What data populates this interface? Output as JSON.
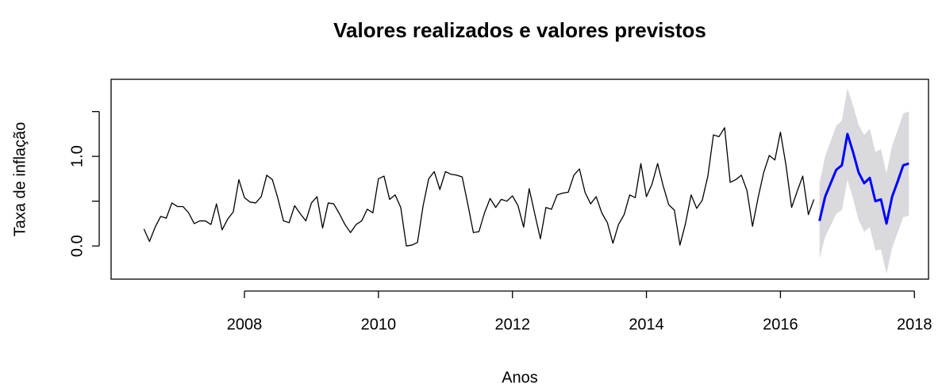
{
  "chart_data": {
    "type": "line",
    "title": "Valores realizados e valores previstos",
    "xlabel": "Anos",
    "ylabel": "Taxa de inflação",
    "xlim": [
      2006.01,
      2018.21
    ],
    "ylim": [
      -0.37,
      1.86
    ],
    "xticks": [
      2008,
      2010,
      2012,
      2014,
      2016,
      2018
    ],
    "yticks": [
      {
        "value": 0,
        "label": "0.0"
      },
      {
        "value": 0.5
      },
      {
        "value": 1,
        "label": "1.0"
      },
      {
        "value": 1.5
      }
    ],
    "band": {
      "color": "#d9d9de",
      "x": [
        2016.583,
        2016.667,
        2016.75,
        2016.833,
        2016.917,
        2017.0,
        2017.083,
        2017.167,
        2017.25,
        2017.333,
        2017.417,
        2017.5,
        2017.583,
        2017.667,
        2017.75,
        2017.833,
        2017.917
      ],
      "upper": [
        0.7,
        1.0,
        1.17,
        1.34,
        1.4,
        1.76,
        1.57,
        1.35,
        1.24,
        1.31,
        1.05,
        1.08,
        0.81,
        1.12,
        1.29,
        1.48,
        1.5
      ],
      "lower": [
        -0.14,
        0.1,
        0.23,
        0.36,
        0.4,
        0.74,
        0.53,
        0.29,
        0.16,
        0.21,
        -0.05,
        -0.04,
        -0.31,
        -0.02,
        0.15,
        0.32,
        0.34
      ]
    },
    "series": [
      {
        "color": "#000000",
        "x": [
          2006.5,
          2006.583,
          2006.667,
          2006.75,
          2006.833,
          2006.917,
          2007.0,
          2007.083,
          2007.167,
          2007.25,
          2007.333,
          2007.417,
          2007.5,
          2007.583,
          2007.667,
          2007.75,
          2007.833,
          2007.917,
          2008.0,
          2008.083,
          2008.167,
          2008.25,
          2008.333,
          2008.417,
          2008.5,
          2008.583,
          2008.667,
          2008.75,
          2008.833,
          2008.917,
          2009.0,
          2009.083,
          2009.167,
          2009.25,
          2009.333,
          2009.417,
          2009.5,
          2009.583,
          2009.667,
          2009.75,
          2009.833,
          2009.917,
          2010.0,
          2010.083,
          2010.167,
          2010.25,
          2010.333,
          2010.417,
          2010.5,
          2010.583,
          2010.667,
          2010.75,
          2010.833,
          2010.917,
          2011.0,
          2011.083,
          2011.167,
          2011.25,
          2011.333,
          2011.417,
          2011.5,
          2011.583,
          2011.667,
          2011.75,
          2011.833,
          2011.917,
          2012.0,
          2012.083,
          2012.167,
          2012.25,
          2012.333,
          2012.417,
          2012.5,
          2012.583,
          2012.667,
          2012.75,
          2012.833,
          2012.917,
          2013.0,
          2013.083,
          2013.167,
          2013.25,
          2013.333,
          2013.417,
          2013.5,
          2013.583,
          2013.667,
          2013.75,
          2013.833,
          2013.917,
          2014.0,
          2014.083,
          2014.167,
          2014.25,
          2014.333,
          2014.417,
          2014.5,
          2014.583,
          2014.667,
          2014.75,
          2014.833,
          2014.917,
          2015.0,
          2015.083,
          2015.167,
          2015.25,
          2015.333,
          2015.417,
          2015.5,
          2015.583,
          2015.667,
          2015.75,
          2015.833,
          2015.917,
          2016.0,
          2016.083,
          2016.167,
          2016.25,
          2016.333,
          2016.417,
          2016.5
        ],
        "values": [
          0.19,
          0.05,
          0.21,
          0.33,
          0.31,
          0.48,
          0.44,
          0.44,
          0.37,
          0.25,
          0.28,
          0.28,
          0.24,
          0.47,
          0.18,
          0.3,
          0.38,
          0.74,
          0.54,
          0.49,
          0.48,
          0.55,
          0.79,
          0.74,
          0.53,
          0.28,
          0.26,
          0.45,
          0.36,
          0.28,
          0.48,
          0.55,
          0.2,
          0.48,
          0.47,
          0.36,
          0.24,
          0.15,
          0.24,
          0.28,
          0.41,
          0.37,
          0.75,
          0.78,
          0.52,
          0.57,
          0.43,
          0.0,
          0.01,
          0.04,
          0.45,
          0.75,
          0.83,
          0.63,
          0.83,
          0.8,
          0.79,
          0.77,
          0.47,
          0.15,
          0.16,
          0.37,
          0.53,
          0.43,
          0.52,
          0.5,
          0.56,
          0.45,
          0.21,
          0.64,
          0.36,
          0.08,
          0.43,
          0.41,
          0.57,
          0.59,
          0.6,
          0.79,
          0.86,
          0.6,
          0.47,
          0.55,
          0.37,
          0.26,
          0.03,
          0.24,
          0.35,
          0.57,
          0.54,
          0.92,
          0.55,
          0.69,
          0.92,
          0.67,
          0.46,
          0.4,
          0.01,
          0.25,
          0.57,
          0.42,
          0.51,
          0.78,
          1.24,
          1.22,
          1.32,
          0.71,
          0.74,
          0.79,
          0.62,
          0.22,
          0.54,
          0.82,
          1.01,
          0.96,
          1.27,
          0.9,
          0.43,
          0.61,
          0.78,
          0.35,
          0.52
        ]
      },
      {
        "color": "#0000ff",
        "x": [
          2016.583,
          2016.667,
          2016.75,
          2016.833,
          2016.917,
          2017.0,
          2017.083,
          2017.167,
          2017.25,
          2017.333,
          2017.417,
          2017.5,
          2017.583,
          2017.667,
          2017.75,
          2017.833,
          2017.917
        ],
        "values": [
          0.28,
          0.55,
          0.7,
          0.85,
          0.9,
          1.25,
          1.05,
          0.82,
          0.7,
          0.76,
          0.5,
          0.52,
          0.25,
          0.55,
          0.72,
          0.9,
          0.92
        ]
      }
    ]
  }
}
